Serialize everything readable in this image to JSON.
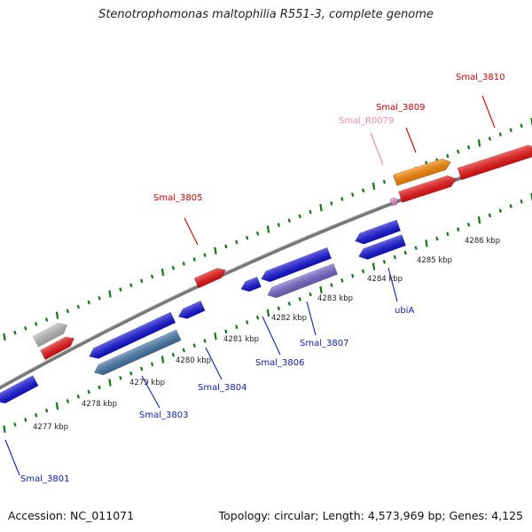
{
  "title": "Stenotrophomonas maltophilia R551-3, complete genome",
  "footer": {
    "accession": "Accession: NC_011071",
    "stats": "Topology: circular; Length: 4,573,969 bp; Genes: 4,125"
  },
  "colors": {
    "forward_strand": "#ee1111",
    "reverse_strand": "#1111dd",
    "label_forward": "#cc0000",
    "label_reverse": "#1122aa",
    "label_rna": "#ee88aa",
    "tick": "#117711",
    "backbone": "#888888"
  },
  "kbp_ticks": [
    "4277 kbp",
    "4278 kbp",
    "4279 kbp",
    "4280 kbp",
    "4281 kbp",
    "4282 kbp",
    "4283 kbp",
    "4284 kbp",
    "4285 kbp",
    "4286 kbp"
  ],
  "genes": [
    {
      "id": "g-3801",
      "strand": "reverse",
      "color": "#1111dd"
    },
    {
      "id": "g-grey",
      "strand": "forward",
      "color": "#bbbbbb"
    },
    {
      "id": "g-red-left",
      "strand": "forward",
      "color": "#ee1111"
    },
    {
      "id": "g-3803a",
      "strand": "reverse",
      "color": "#1111dd"
    },
    {
      "id": "g-3803b",
      "strand": "reverse",
      "color": "#4477aa"
    },
    {
      "id": "g-3804",
      "strand": "reverse",
      "color": "#1111dd"
    },
    {
      "id": "g-3805",
      "strand": "forward",
      "color": "#ee1111"
    },
    {
      "id": "g-3806",
      "strand": "reverse",
      "color": "#1111dd"
    },
    {
      "id": "g-3806b",
      "strand": "reverse",
      "color": "#1111dd"
    },
    {
      "id": "g-3807",
      "strand": "reverse",
      "color": "#7766cc"
    },
    {
      "id": "g-ubia-a",
      "strand": "reverse",
      "color": "#1111dd"
    },
    {
      "id": "g-ubia-b",
      "strand": "reverse",
      "color": "#1111dd"
    },
    {
      "id": "g-r0079",
      "strand": "forward",
      "color": "#ee88cc"
    },
    {
      "id": "g-3809a",
      "strand": "forward",
      "color": "#ff8800"
    },
    {
      "id": "g-3809b",
      "strand": "forward",
      "color": "#ee1111"
    },
    {
      "id": "g-3810",
      "strand": "forward",
      "color": "#ee1111"
    }
  ],
  "gene_labels": [
    {
      "text": "Smal_3801",
      "strand": "reverse"
    },
    {
      "text": "Smal_3803",
      "strand": "reverse"
    },
    {
      "text": "Smal_3804",
      "strand": "reverse"
    },
    {
      "text": "Smal_3805",
      "strand": "forward"
    },
    {
      "text": "Smal_3806",
      "strand": "reverse"
    },
    {
      "text": "Smal_3807",
      "strand": "reverse"
    },
    {
      "text": "ubiA",
      "strand": "reverse"
    },
    {
      "text": "Smal_R0079",
      "strand": "rna"
    },
    {
      "text": "Smal_3809",
      "strand": "forward"
    },
    {
      "text": "Smal_3810",
      "strand": "forward"
    }
  ]
}
